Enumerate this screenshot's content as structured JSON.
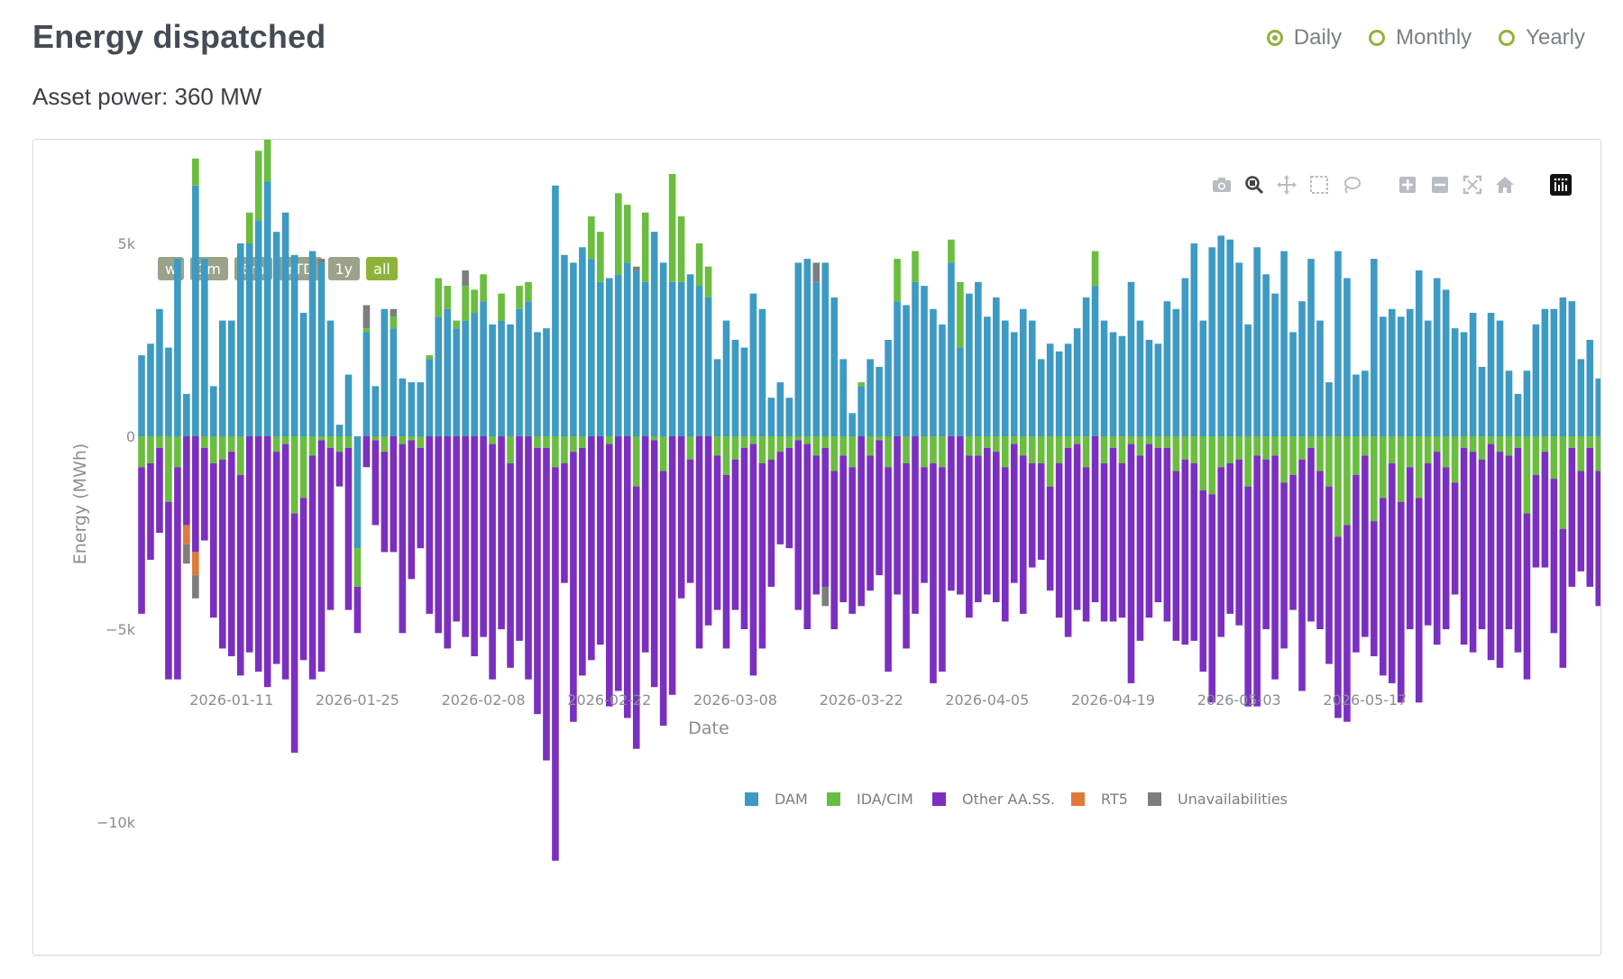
{
  "page": {
    "title": "Energy dispatched",
    "subtitle": "Asset power: 360 MW"
  },
  "period_selector": {
    "options": [
      {
        "label": "Daily",
        "checked": true
      },
      {
        "label": "Monthly",
        "checked": false
      },
      {
        "label": "Yearly",
        "checked": false
      }
    ],
    "accent_color": "#8fb339"
  },
  "modebar": {
    "icons": [
      "camera-icon",
      "zoom-icon",
      "pan-icon",
      "box-select-icon",
      "lasso-select-icon",
      "zoom-in-icon",
      "zoom-out-icon",
      "autoscale-icon",
      "reset-axes-icon",
      "plotly-logo-icon"
    ]
  },
  "range_selector": {
    "buttons": [
      "w",
      "1m",
      "6m",
      "YTD",
      "1y",
      "all"
    ],
    "active": "all"
  },
  "chart_data": {
    "type": "bar",
    "barmode": "relative",
    "xlabel": "Date",
    "ylabel": "Energy (MWh)",
    "ylim": [
      -11500,
      8800
    ],
    "yticks": [
      -10000,
      -5000,
      0,
      5000
    ],
    "ytick_labels": [
      "−10k",
      "−5k",
      "0",
      "5k"
    ],
    "xticks": [
      "2026-01-11",
      "2026-01-25",
      "2026-02-08",
      "2026-02-22",
      "2026-03-08",
      "2026-03-22",
      "2026-04-05",
      "2026-04-19",
      "2026-05-03",
      "2026-05-17"
    ],
    "x_start": "2026-01-01",
    "x_end": "2026-05-31",
    "grid": false,
    "legend_position": "bottom-right",
    "series_meta": [
      {
        "name": "DAM",
        "color": "#3d9ac3"
      },
      {
        "name": "IDA/CIM",
        "color": "#6abd3f"
      },
      {
        "name": "Other AA.SS.",
        "color": "#7b2fc0"
      },
      {
        "name": "RT5",
        "color": "#e07a38"
      },
      {
        "name": "Unavailabilities",
        "color": "#7d7d7d"
      }
    ]
  }
}
